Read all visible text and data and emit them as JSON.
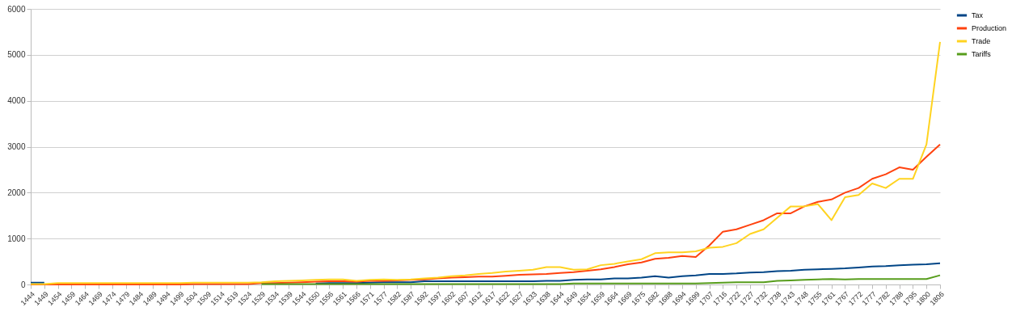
{
  "chart_data": {
    "type": "line",
    "categories": [
      "1444",
      "1449",
      "1454",
      "1459",
      "1464",
      "1469",
      "1474",
      "1479",
      "1484",
      "1489",
      "1494",
      "1499",
      "1504",
      "1509",
      "1514",
      "1519",
      "1524",
      "1529",
      "1534",
      "1539",
      "1544",
      "1550",
      "1556",
      "1561",
      "1566",
      "1571",
      "1577",
      "1582",
      "1587",
      "1592",
      "1597",
      "1602",
      "1607",
      "1612",
      "1617",
      "1622",
      "1627",
      "1633",
      "1638",
      "1644",
      "1649",
      "1654",
      "1659",
      "1664",
      "1669",
      "1675",
      "1682",
      "1688",
      "1694",
      "1699",
      "1707",
      "1716",
      "1722",
      "1727",
      "1732",
      "1738",
      "1743",
      "1748",
      "1755",
      "1761",
      "1767",
      "1772",
      "1777",
      "1782",
      "1788",
      "1795",
      "1800",
      "1806"
    ],
    "series": [
      {
        "name": "Tax",
        "color": "#004586",
        "values": [
          40,
          40,
          null,
          null,
          null,
          null,
          null,
          null,
          null,
          null,
          null,
          null,
          null,
          null,
          null,
          null,
          null,
          null,
          null,
          null,
          null,
          20,
          30,
          30,
          30,
          40,
          50,
          50,
          50,
          70,
          70,
          70,
          70,
          70,
          70,
          70,
          70,
          70,
          80,
          80,
          100,
          110,
          110,
          130,
          130,
          150,
          180,
          150,
          180,
          200,
          230,
          230,
          240,
          260,
          270,
          290,
          300,
          320,
          330,
          340,
          350,
          370,
          390,
          400,
          420,
          430,
          440,
          460
        ]
      },
      {
        "name": "Production",
        "color": "#ff420e",
        "values": [
          0,
          0,
          0,
          0,
          0,
          0,
          0,
          0,
          0,
          0,
          0,
          0,
          10,
          10,
          10,
          10,
          10,
          30,
          30,
          40,
          50,
          60,
          70,
          70,
          60,
          80,
          80,
          90,
          100,
          110,
          130,
          150,
          160,
          170,
          170,
          190,
          210,
          220,
          230,
          250,
          270,
          300,
          330,
          380,
          440,
          480,
          560,
          580,
          620,
          600,
          850,
          1150,
          1200,
          1300,
          1400,
          1550,
          1550,
          1700,
          1800,
          1850,
          2000,
          2100,
          2300,
          2400,
          2550,
          2500,
          2780,
          3050
        ]
      },
      {
        "name": "Trade",
        "color": "#ffd320",
        "values": [
          10,
          10,
          30,
          30,
          30,
          30,
          30,
          30,
          30,
          30,
          30,
          30,
          40,
          40,
          40,
          40,
          40,
          50,
          70,
          80,
          90,
          100,
          110,
          110,
          80,
          100,
          110,
          100,
          110,
          130,
          150,
          180,
          200,
          230,
          250,
          280,
          300,
          320,
          380,
          380,
          320,
          330,
          420,
          450,
          500,
          550,
          680,
          700,
          700,
          720,
          800,
          820,
          900,
          1100,
          1200,
          1450,
          1700,
          1700,
          1750,
          1400,
          1900,
          1950,
          2200,
          2100,
          2300,
          2300,
          3050,
          5280
        ]
      },
      {
        "name": "Tariffs",
        "color": "#579d1c",
        "values": [
          null,
          null,
          null,
          null,
          null,
          null,
          null,
          null,
          null,
          null,
          null,
          null,
          null,
          null,
          null,
          null,
          null,
          10,
          10,
          10,
          10,
          10,
          10,
          10,
          10,
          10,
          10,
          10,
          10,
          10,
          10,
          10,
          10,
          10,
          10,
          10,
          10,
          10,
          10,
          10,
          20,
          20,
          20,
          20,
          20,
          20,
          20,
          20,
          20,
          20,
          30,
          40,
          50,
          50,
          50,
          80,
          90,
          100,
          110,
          120,
          110,
          120,
          120,
          120,
          120,
          120,
          120,
          200
        ]
      }
    ],
    "ylim": [
      0,
      6000
    ],
    "yticks": [
      0,
      1000,
      2000,
      3000,
      4000,
      5000,
      6000
    ],
    "grid": "y",
    "legend": "right"
  }
}
